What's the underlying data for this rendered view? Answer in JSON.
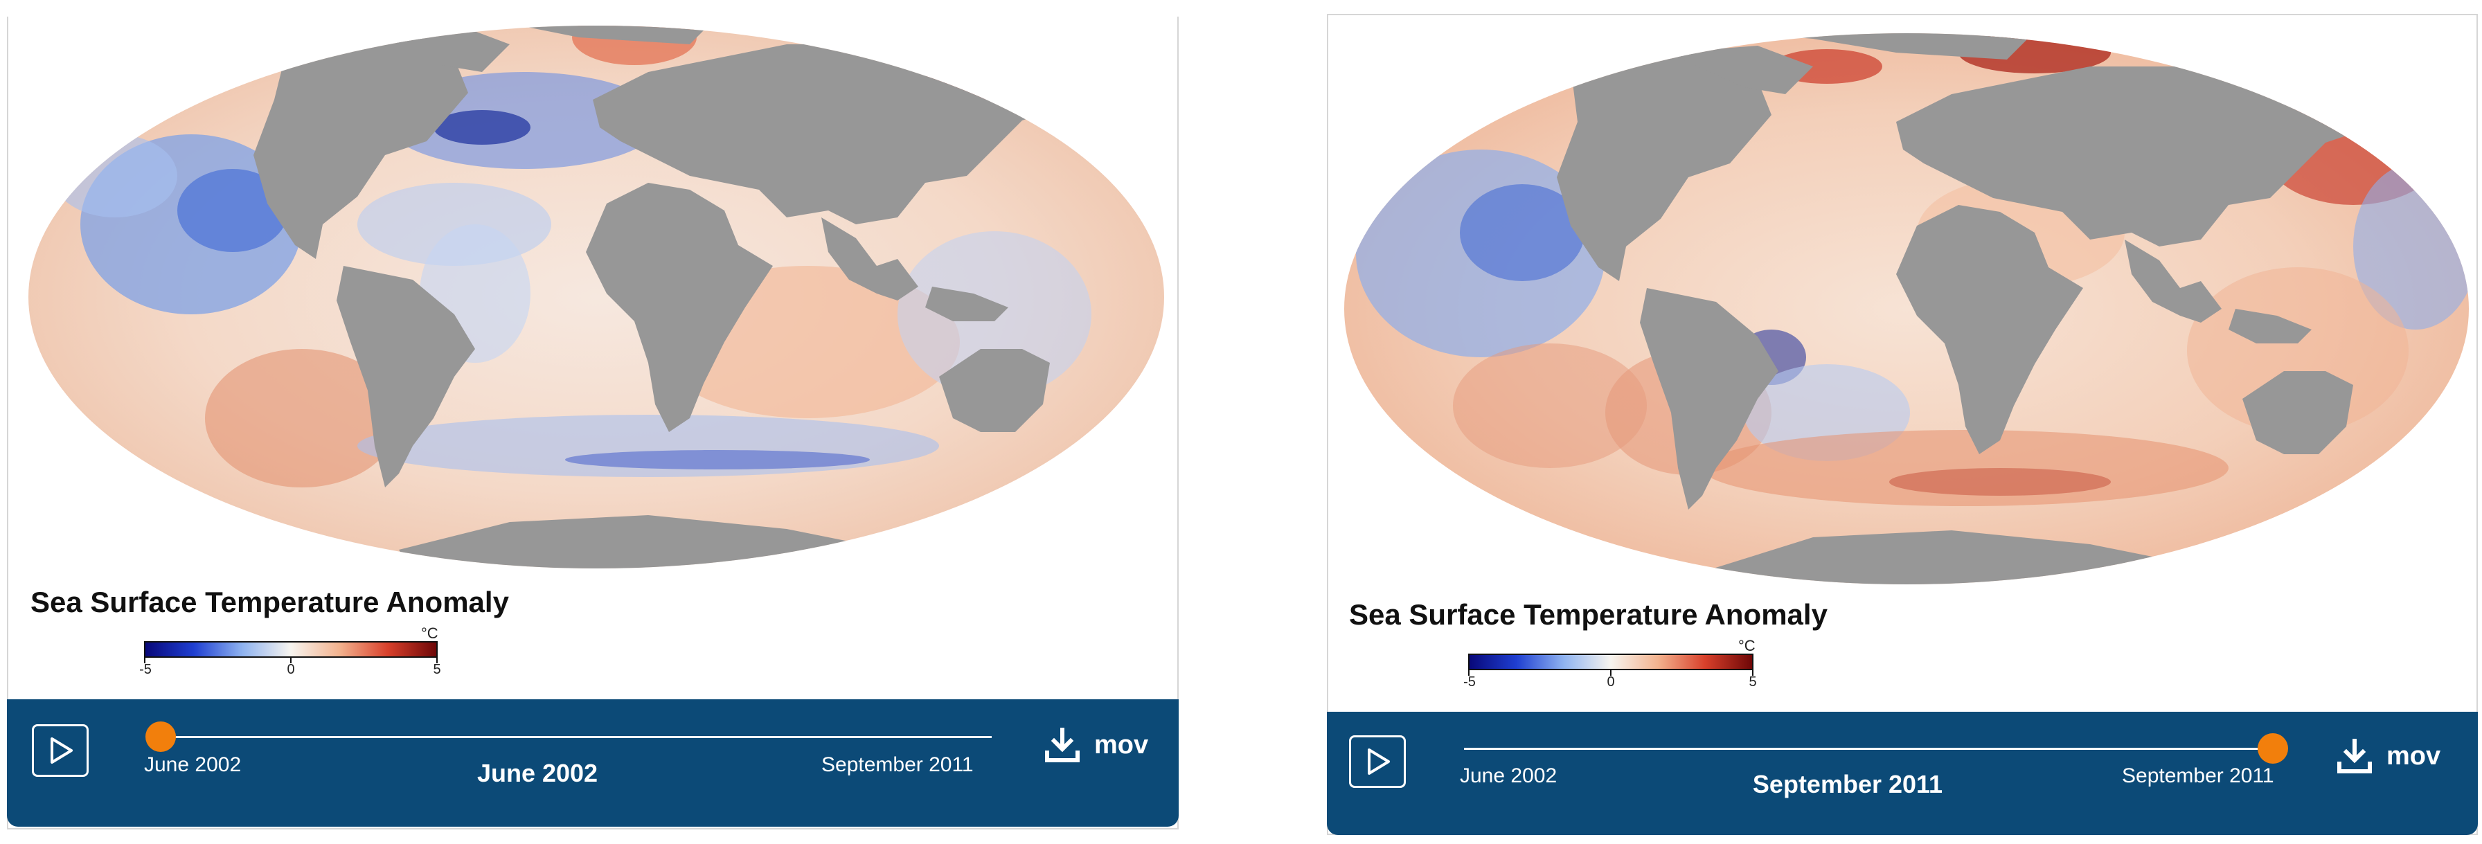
{
  "colors": {
    "control_bar": "#0c4a77",
    "slider_thumb": "#f27f0c",
    "land": "#979797",
    "cold": "#1a3fa0",
    "warm": "#c0392b"
  },
  "panels": [
    {
      "title": "Sea Surface Temperature Anomaly",
      "legend": {
        "unit": "°C",
        "min_label": "-5",
        "mid_label": "0",
        "max_label": "5"
      },
      "controls": {
        "play_icon": "play-icon",
        "range_start": "June 2002",
        "range_end": "September 2011",
        "current_date": "June 2002",
        "slider_position": 0,
        "download_icon": "download-icon",
        "download_label": "mov"
      }
    },
    {
      "title": "Sea Surface Temperature Anomaly",
      "legend": {
        "unit": "°C",
        "min_label": "-5",
        "mid_label": "0",
        "max_label": "5"
      },
      "controls": {
        "play_icon": "play-icon",
        "range_start": "June 2002",
        "range_end": "September 2011",
        "current_date": "September 2011",
        "slider_position": 1,
        "download_icon": "download-icon",
        "download_label": "mov"
      }
    }
  ]
}
